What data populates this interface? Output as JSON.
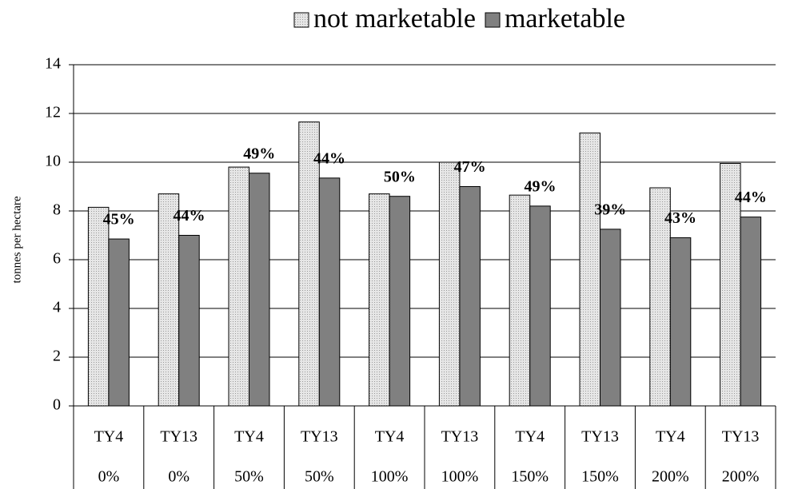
{
  "chart_data": {
    "type": "bar",
    "y_label": "tonnes per hectare",
    "categories": [
      [
        "TY4",
        "0%"
      ],
      [
        "TY13",
        "0%"
      ],
      [
        "TY4",
        "50%"
      ],
      [
        "TY13",
        "50%"
      ],
      [
        "TY4",
        "100%"
      ],
      [
        "TY13",
        "100%"
      ],
      [
        "TY4",
        "150%"
      ],
      [
        "TY13",
        "150%"
      ],
      [
        "TY4",
        "200%"
      ],
      [
        "TY13",
        "200%"
      ]
    ],
    "series": [
      {
        "name": "not marketable",
        "color": "#d9d9d9",
        "values": [
          8.15,
          8.7,
          9.8,
          11.65,
          8.7,
          10.0,
          8.65,
          11.2,
          8.95,
          9.95
        ]
      },
      {
        "name": "marketable",
        "color": "#808080",
        "values": [
          6.85,
          7.0,
          9.55,
          9.35,
          8.6,
          9.0,
          8.2,
          7.25,
          6.9,
          7.75
        ]
      }
    ],
    "annotations": [
      "45%",
      "44%",
      "49%",
      "44%",
      "50%",
      "47%",
      "49%",
      "39%",
      "43%",
      "44%"
    ],
    "ylim": [
      0,
      14
    ],
    "yticks": [
      0,
      2,
      4,
      6,
      8,
      10,
      12,
      14
    ],
    "grid": true,
    "legend": "top"
  }
}
